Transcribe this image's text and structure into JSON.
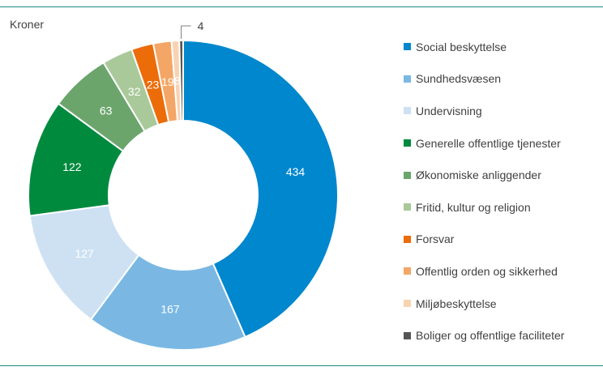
{
  "chart_data": {
    "type": "pie",
    "variant": "donut",
    "unit_label": "Kroner",
    "legend_position": "right",
    "categories": [
      "Social beskyttelse",
      "Sundhedsvæsen",
      "Undervisning",
      "Generelle offentlige tjenester",
      "Økonomiske anliggender",
      "Fritid, kultur og religion",
      "Forsvar",
      "Offentlig orden og sikkerhed",
      "Miljøbeskyttelse",
      "Boliger og offentlige faciliteter"
    ],
    "values": [
      434,
      167,
      127,
      122,
      63,
      32,
      23,
      19,
      8,
      4
    ],
    "data_labels": [
      "434",
      "167",
      "127",
      "122",
      "63",
      "32",
      "23",
      "19",
      "8",
      "4"
    ],
    "colors": [
      "#0087cd",
      "#7ab8e3",
      "#cde1f3",
      "#008a3e",
      "#6ba56c",
      "#a9c99a",
      "#eb6c09",
      "#f4a666",
      "#f8d3b2",
      "#555555"
    ],
    "label_colors": [
      "#ffffff",
      "#ffffff",
      "#ffffff",
      "#ffffff",
      "#ffffff",
      "#ffffff",
      "#ffffff",
      "#ffffff",
      "#ffffff",
      "#404040"
    ]
  }
}
